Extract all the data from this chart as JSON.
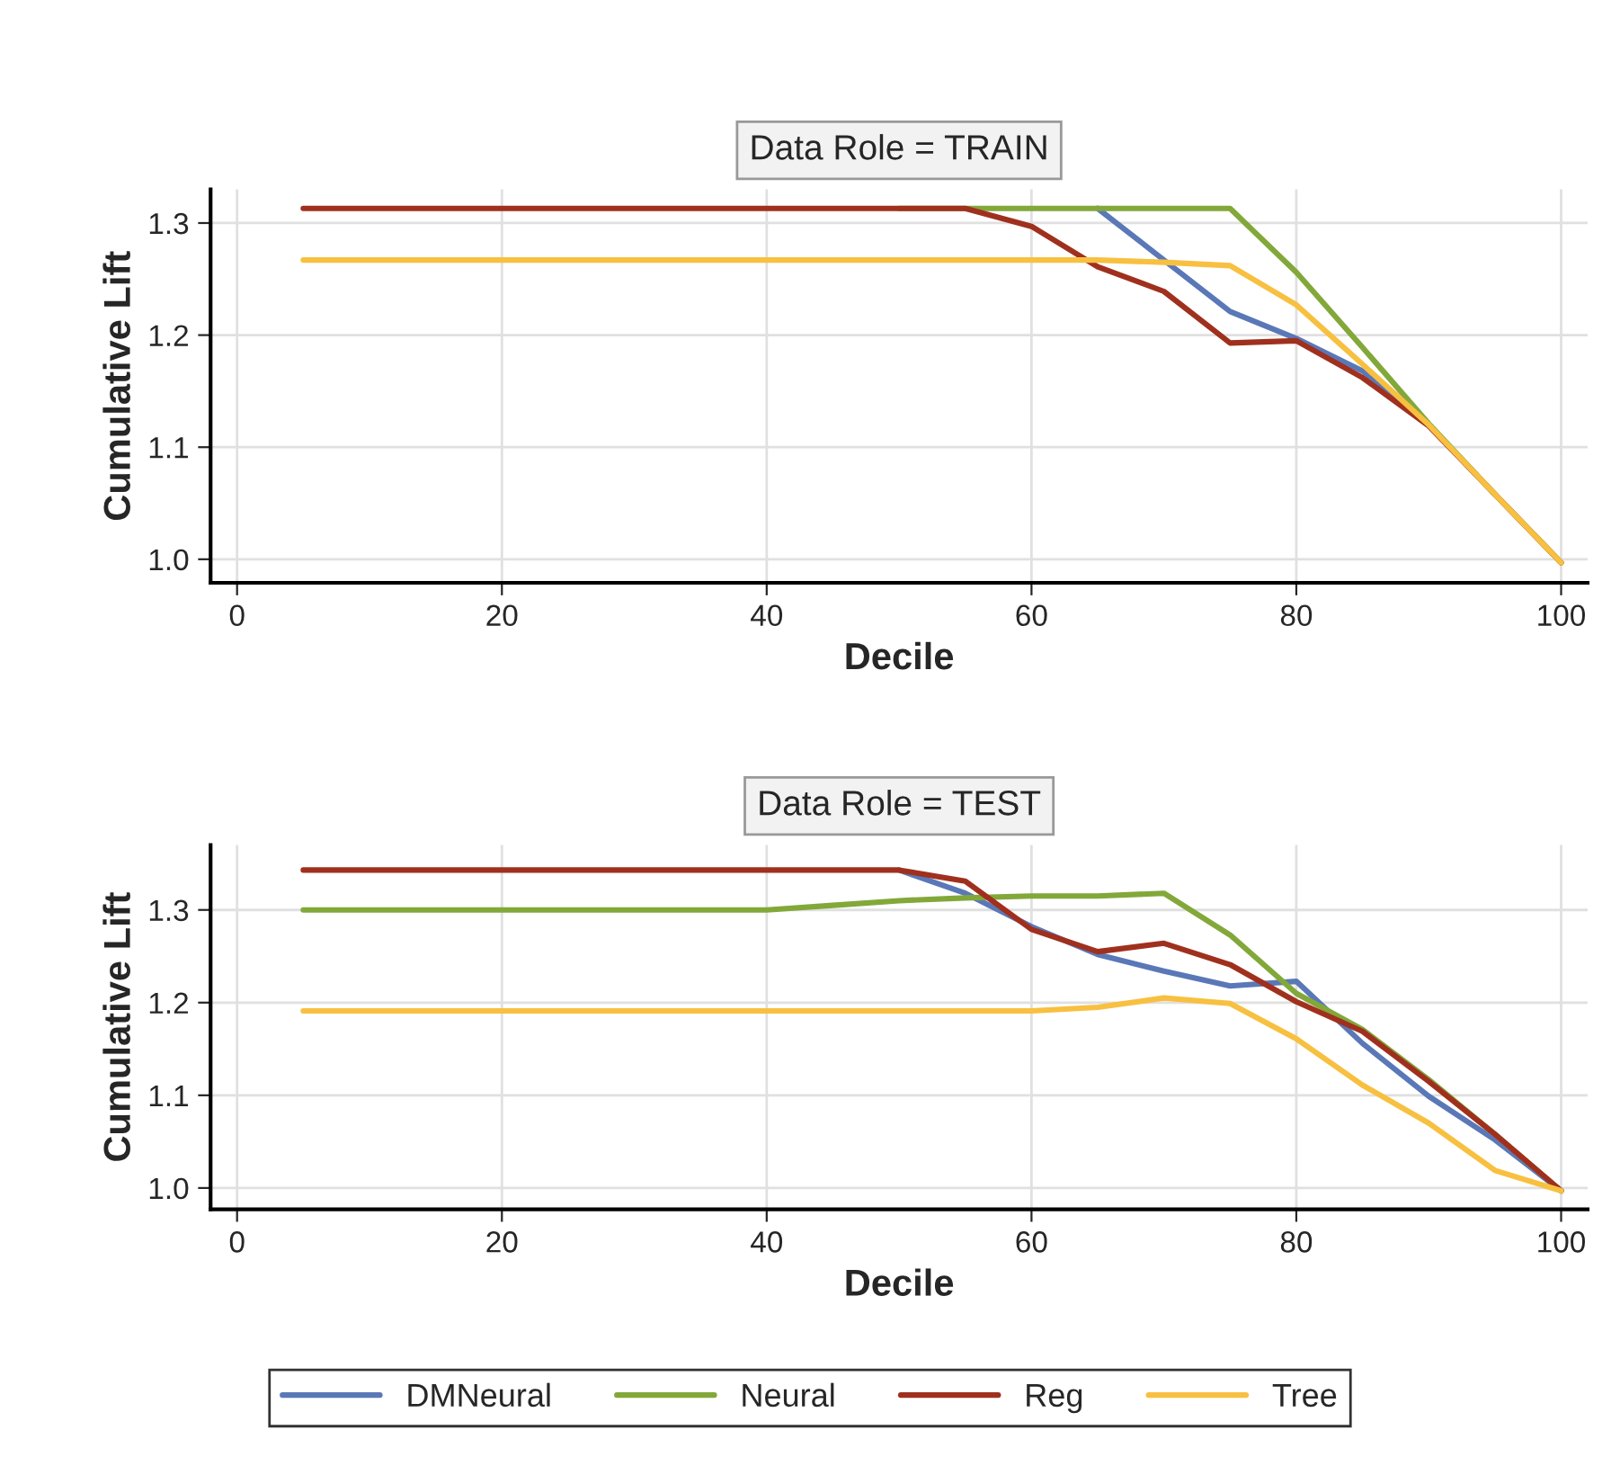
{
  "chart_data": [
    {
      "type": "line",
      "title": "Data Role = TRAIN",
      "xlabel": "Decile",
      "ylabel": "Cumulative Lift",
      "x": [
        5,
        10,
        15,
        20,
        25,
        30,
        35,
        40,
        45,
        50,
        55,
        60,
        65,
        70,
        75,
        80,
        85,
        90,
        95,
        100
      ],
      "xlim": [
        -2,
        102
      ],
      "xticks": [
        0,
        20,
        40,
        60,
        80,
        100
      ],
      "ylim": [
        0.979,
        1.33
      ],
      "yticks": [
        {
          "value": 1.0,
          "label": "1.0"
        },
        1.1,
        1.2,
        1.3
      ],
      "grid": true,
      "legend": "bottom",
      "series": [
        {
          "name": "DMNeural",
          "color": "#5a78b8",
          "values": [
            null,
            null,
            null,
            null,
            null,
            null,
            null,
            null,
            null,
            null,
            null,
            null,
            1.313,
            1.267,
            1.221,
            1.197,
            1.168,
            1.12,
            null,
            null
          ]
        },
        {
          "name": "Neural",
          "color": "#82a83a",
          "values": [
            null,
            null,
            null,
            null,
            null,
            null,
            null,
            null,
            null,
            1.313,
            1.313,
            1.313,
            1.313,
            1.313,
            1.313,
            1.256,
            1.189,
            1.121,
            1.058,
            0.997
          ]
        },
        {
          "name": "Reg",
          "color": "#a0301e",
          "values": [
            1.313,
            1.313,
            1.313,
            1.313,
            1.313,
            1.313,
            1.313,
            1.313,
            1.313,
            1.313,
            1.313,
            1.297,
            1.261,
            1.239,
            1.193,
            1.195,
            1.162,
            1.119,
            1.058,
            0.997
          ]
        },
        {
          "name": "Tree",
          "color": "#f8c040",
          "values": [
            1.267,
            1.267,
            1.267,
            1.267,
            1.267,
            1.267,
            1.267,
            1.267,
            1.267,
            1.267,
            1.267,
            1.267,
            1.267,
            1.265,
            1.262,
            1.227,
            1.174,
            1.12,
            1.058,
            0.997
          ]
        }
      ]
    },
    {
      "type": "line",
      "title": "Data Role = TEST",
      "xlabel": "Decile",
      "ylabel": "Cumulative Lift",
      "x": [
        5,
        10,
        15,
        20,
        25,
        30,
        35,
        40,
        45,
        50,
        55,
        60,
        65,
        70,
        75,
        80,
        85,
        90,
        95,
        100
      ],
      "xlim": [
        -2,
        102
      ],
      "xticks": [
        0,
        20,
        40,
        60,
        80,
        100
      ],
      "ylim": [
        0.977,
        1.37
      ],
      "yticks": [
        {
          "value": 1.0,
          "label": "1.0"
        },
        1.1,
        1.2,
        1.3
      ],
      "grid": true,
      "legend": "bottom",
      "series": [
        {
          "name": "DMNeural",
          "color": "#5a78b8",
          "values": [
            null,
            null,
            null,
            null,
            null,
            null,
            null,
            null,
            null,
            1.343,
            1.318,
            1.282,
            1.252,
            1.234,
            1.218,
            1.223,
            1.156,
            1.099,
            1.052,
            0.997
          ]
        },
        {
          "name": "Neural",
          "color": "#82a83a",
          "values": [
            1.3,
            1.3,
            1.3,
            1.3,
            1.3,
            1.3,
            1.3,
            1.3,
            1.305,
            1.31,
            1.313,
            1.315,
            1.315,
            1.318,
            1.273,
            1.21,
            1.171,
            1.117,
            1.058,
            0.997
          ]
        },
        {
          "name": "Reg",
          "color": "#a0301e",
          "values": [
            1.343,
            1.343,
            1.343,
            1.343,
            1.343,
            1.343,
            1.343,
            1.343,
            1.343,
            1.343,
            1.331,
            1.279,
            1.255,
            1.264,
            1.241,
            1.201,
            1.169,
            1.115,
            1.058,
            0.997
          ]
        },
        {
          "name": "Tree",
          "color": "#f8c040",
          "values": [
            1.191,
            1.191,
            1.191,
            1.191,
            1.191,
            1.191,
            1.191,
            1.191,
            1.191,
            1.191,
            1.191,
            1.191,
            1.195,
            1.205,
            1.199,
            1.161,
            1.111,
            1.07,
            1.019,
            0.997
          ]
        }
      ]
    }
  ]
}
